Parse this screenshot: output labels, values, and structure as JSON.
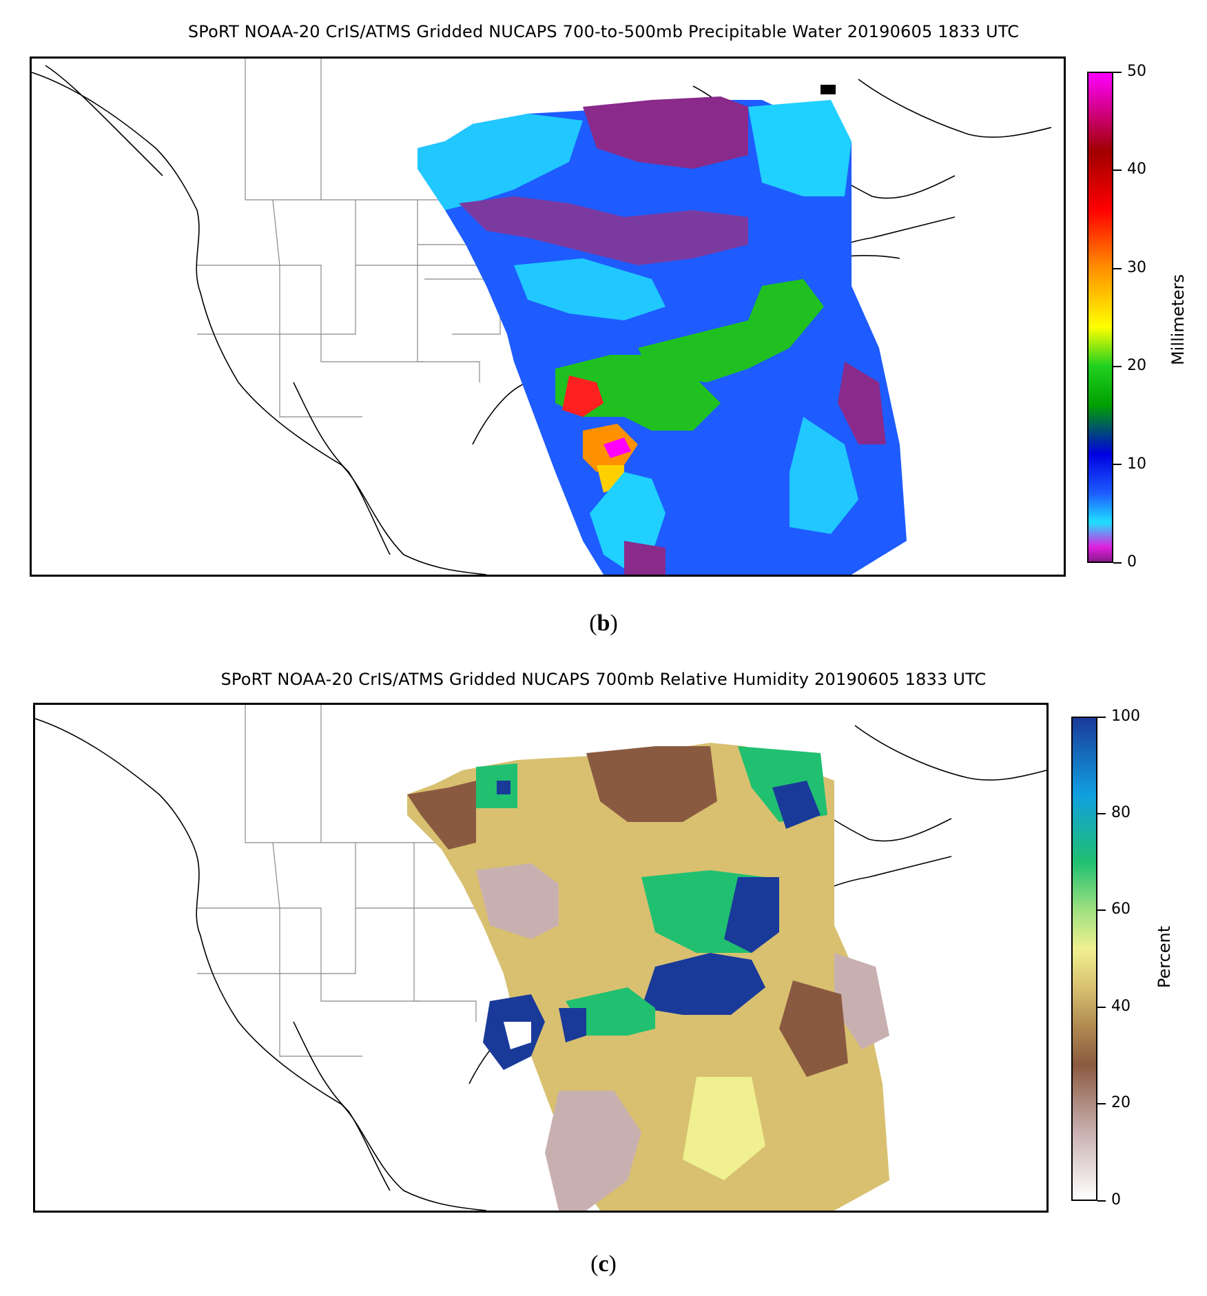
{
  "panels": [
    {
      "title": "SPoRT NOAA-20 CrIS/ATMS Gridded NUCAPS 700-to-500mb Precipitable Water 20190605 1833 UTC",
      "label_open": "(",
      "label_letter": "b",
      "label_close": ")",
      "colorbar": {
        "label": "Millimeters",
        "ticks": [
          "0",
          "10",
          "20",
          "30",
          "40",
          "50"
        ],
        "range": [
          0,
          50
        ],
        "colors": [
          "#8b1a8b",
          "#e020e0",
          "#20e0ff",
          "#1e5cff",
          "#0000e0",
          "#00a000",
          "#20d020",
          "#ffff00",
          "#ff9000",
          "#ff0000",
          "#a00000",
          "#ff00ff"
        ]
      }
    },
    {
      "title": "SPoRT NOAA-20 CrIS/ATMS Gridded NUCAPS 700mb Relative Humidity 20190605 1833 UTC",
      "label_open": "(",
      "label_letter": "c",
      "label_close": ")",
      "colorbar": {
        "label": "Percent",
        "ticks": [
          "0",
          "20",
          "40",
          "60",
          "80",
          "100"
        ],
        "range": [
          0,
          100
        ],
        "colors": [
          "#ffffff",
          "#c9b0b0",
          "#8a5a40",
          "#b08a50",
          "#d8c070",
          "#f0f090",
          "#a0e080",
          "#20c070",
          "#10a0e0",
          "#1a3a9a"
        ]
      }
    }
  ]
}
